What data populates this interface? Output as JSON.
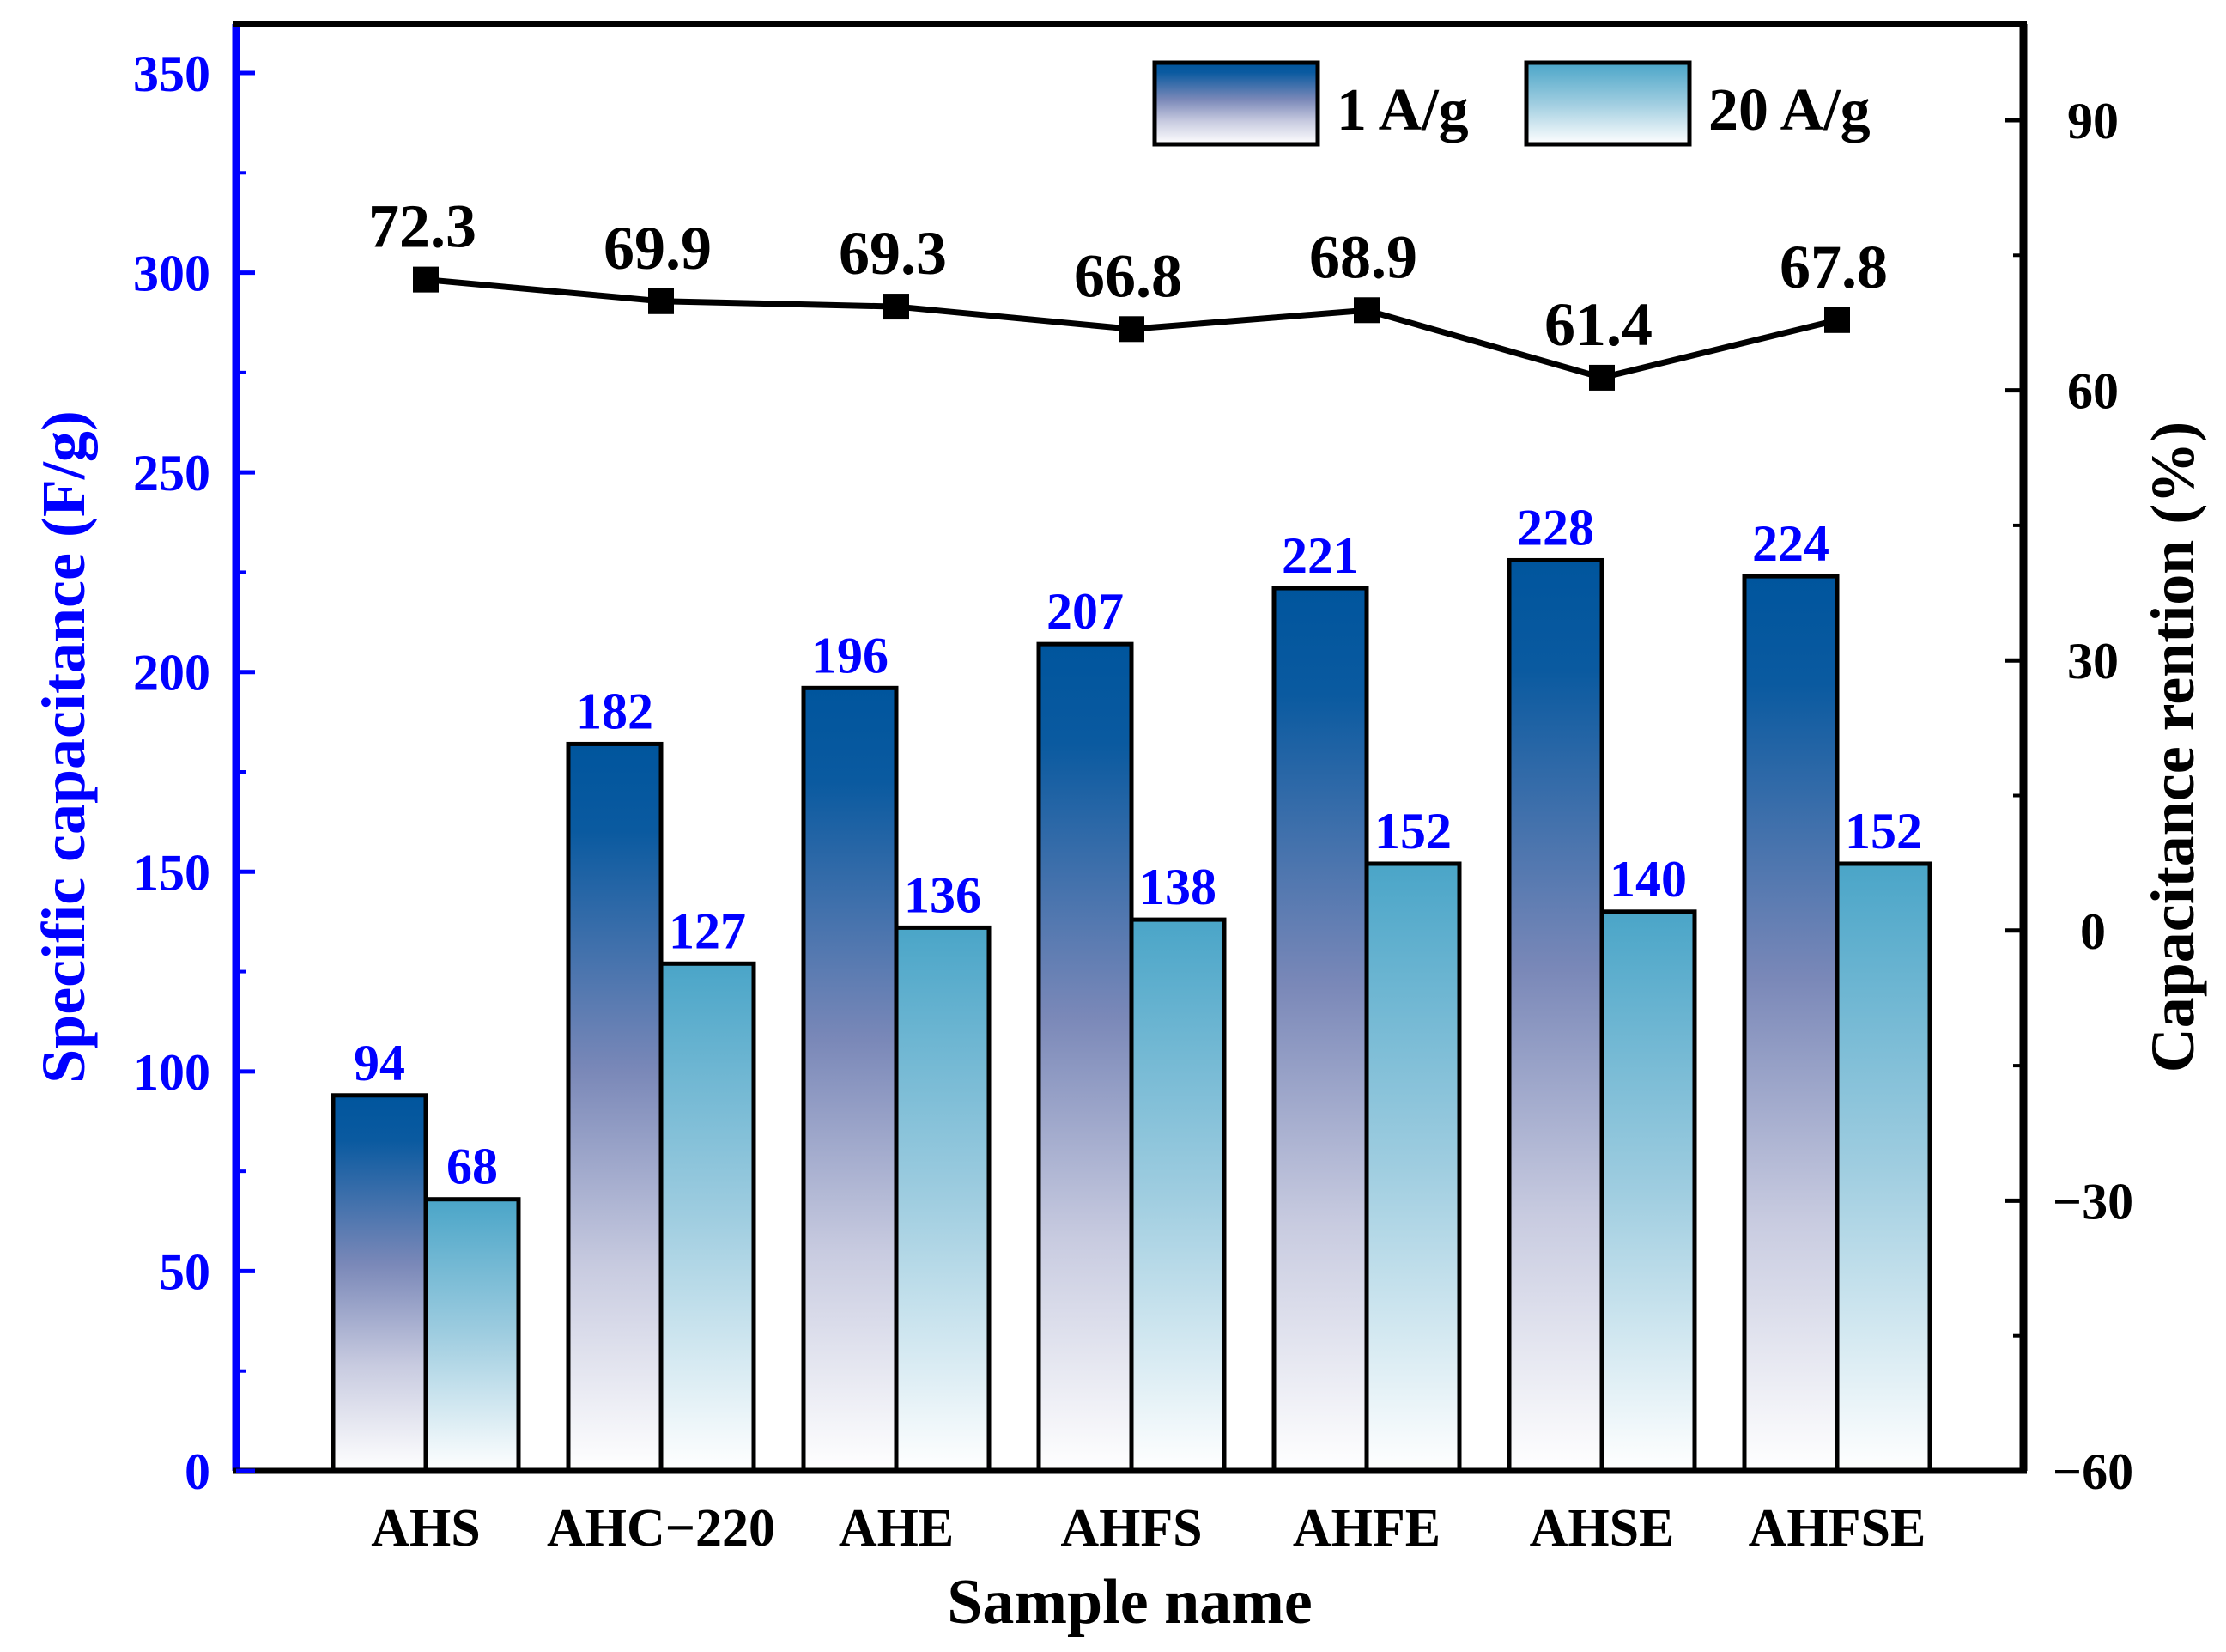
{
  "chart_data": {
    "type": "bar",
    "xlabel": "Sample name",
    "ylabel": "Specific capacitance (F/g)",
    "y2label": "Capacitance rention (%)",
    "categories": [
      "AHS",
      "AHC−220",
      "AHE",
      "AHFS",
      "AHFE",
      "AHSE",
      "AHFSE"
    ],
    "ylim": [
      0,
      350
    ],
    "y2lim": [
      -60,
      100
    ],
    "yticks": [
      "0",
      "50",
      "100",
      "150",
      "200",
      "250",
      "300",
      "350"
    ],
    "y2ticks": [
      "−60",
      "−30",
      "0",
      "30",
      "60",
      "90"
    ],
    "grid": false,
    "legend_position": "top-right",
    "series": [
      {
        "name": "1 A/g",
        "axis": "left",
        "kind": "bar",
        "values": [
          94,
          182,
          196,
          207,
          221,
          228,
          224
        ],
        "labels": [
          "94",
          "182",
          "196",
          "207",
          "221",
          "228",
          "224"
        ]
      },
      {
        "name": "20 A/g",
        "axis": "left",
        "kind": "bar",
        "values": [
          68,
          127,
          136,
          138,
          152,
          140,
          152
        ],
        "labels": [
          "68",
          "127",
          "136",
          "138",
          "152",
          "140",
          "152"
        ]
      },
      {
        "axis": "right",
        "kind": "line",
        "values": [
          72.3,
          69.9,
          69.3,
          66.8,
          68.9,
          61.4,
          67.8
        ],
        "labels": [
          "72.3",
          "69.9",
          "69.3",
          "66.8",
          "68.9",
          "61.4",
          "67.8"
        ]
      }
    ],
    "colors": {
      "left_axis": "#0000ff",
      "right_axis": "#000000",
      "bar1_top": "#00559d",
      "bar1_mid": "#a8a8cc",
      "bar1_bottom": "#ffffff",
      "bar2_top": "#4aa5c8",
      "bar2_bottom": "#ffffff",
      "line": "#000000",
      "data_label_bars": "#0000ff",
      "data_label_line": "#000000"
    }
  }
}
